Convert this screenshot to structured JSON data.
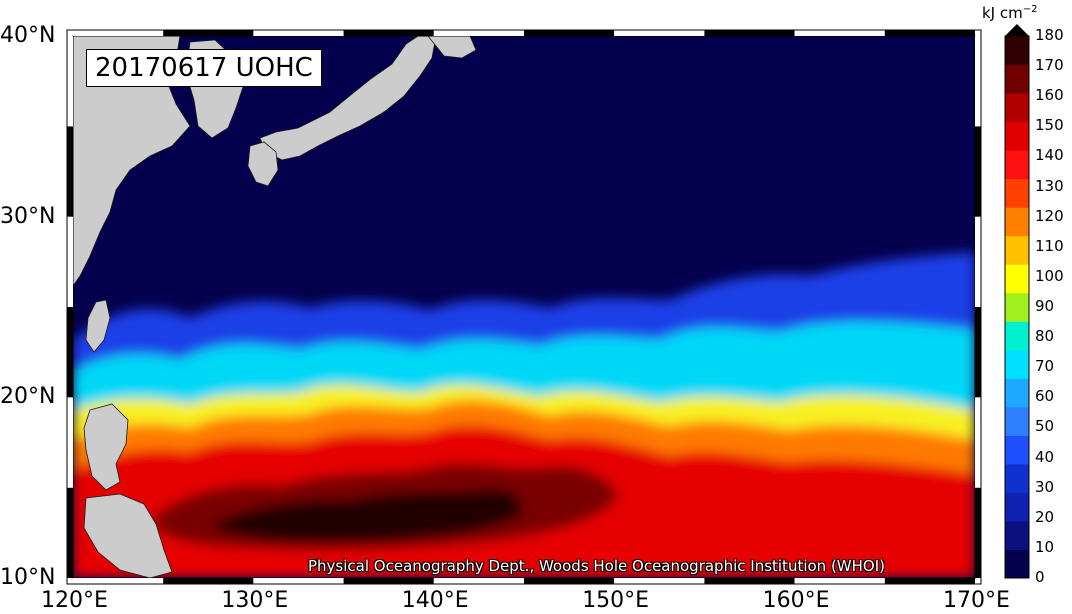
{
  "map": {
    "date_label": "20170617 UOHC",
    "credit": "Physical Oceanography Dept., Woods Hole Oceanographic Institution (WHOI)",
    "lon_ticks": [
      "120°E",
      "130°E",
      "140°E",
      "150°E",
      "160°E",
      "170°E"
    ],
    "lat_ticks": [
      "40°N",
      "30°N",
      "20°N",
      "10°N"
    ],
    "lon_range": [
      120,
      170
    ],
    "lat_range": [
      10,
      40
    ],
    "land_color": "#cccccc",
    "ocean_deep_color": "#05004d"
  },
  "colorbar": {
    "unit_text": "kJ cm",
    "unit_exp": "−2",
    "ticks": [
      "0",
      "10",
      "20",
      "30",
      "40",
      "50",
      "60",
      "70",
      "80",
      "90",
      "100",
      "110",
      "120",
      "130",
      "140",
      "150",
      "160",
      "170",
      "180"
    ],
    "colors": [
      "#05004d",
      "#0a1080",
      "#1020b0",
      "#1030d0",
      "#1e50ff",
      "#2e80ff",
      "#1ea8ff",
      "#00e0ff",
      "#00f0d0",
      "#a0f020",
      "#ffff00",
      "#ffc000",
      "#ff8000",
      "#ff4000",
      "#ff1010",
      "#e00000",
      "#b00000",
      "#700000",
      "#300000"
    ]
  }
}
